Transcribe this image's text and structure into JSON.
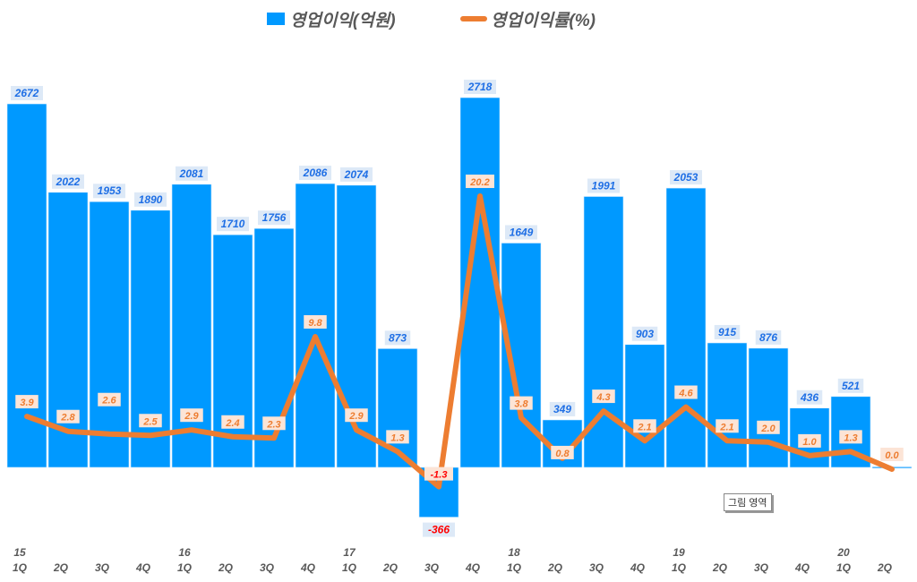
{
  "legend": {
    "bar_label": "영업이익(억원)",
    "line_label": "영업이익률(%)"
  },
  "tooltip": "그림 영역",
  "colors": {
    "bar": "#0099ff",
    "line": "#ed7d31",
    "bar_label": "#1f6fe5",
    "negative_label": "#ff0000",
    "axis_text": "#595959"
  },
  "chart_data": {
    "type": "bar+line",
    "title": "",
    "categories": [
      "15 1Q",
      "2Q",
      "3Q",
      "4Q",
      "16 1Q",
      "2Q",
      "3Q",
      "4Q",
      "17 1Q",
      "2Q",
      "3Q",
      "4Q",
      "18 1Q",
      "2Q",
      "3Q",
      "4Q",
      "19 1Q",
      "2Q",
      "3Q",
      "4Q",
      "20 1Q",
      "2Q"
    ],
    "x_tick_years": [
      "15",
      "",
      "",
      "",
      "16",
      "",
      "",
      "",
      "17",
      "",
      "",
      "",
      "18",
      "",
      "",
      "",
      "19",
      "",
      "",
      "",
      "20",
      ""
    ],
    "x_tick_quarters": [
      "1Q",
      "2Q",
      "3Q",
      "4Q",
      "1Q",
      "2Q",
      "3Q",
      "4Q",
      "1Q",
      "2Q",
      "3Q",
      "4Q",
      "1Q",
      "2Q",
      "3Q",
      "4Q",
      "1Q",
      "2Q",
      "3Q",
      "4Q",
      "1Q",
      "2Q"
    ],
    "series": [
      {
        "name": "영업이익(억원)",
        "type": "bar",
        "values": [
          2672,
          2022,
          1953,
          1890,
          2081,
          1710,
          1756,
          2086,
          2074,
          873,
          -366,
          2718,
          1649,
          349,
          1991,
          903,
          2053,
          915,
          876,
          436,
          521,
          4
        ],
        "labels": [
          "2672",
          "2022",
          "1953",
          "1890",
          "2081",
          "1710",
          "1756",
          "2086",
          "2074",
          "873",
          "-366",
          "2718",
          "1649",
          "349",
          "1991",
          "903",
          "2053",
          "915",
          "876",
          "436",
          "521",
          ""
        ]
      },
      {
        "name": "영업이익률(%)",
        "type": "line",
        "values": [
          3.9,
          2.8,
          2.6,
          2.5,
          2.9,
          2.4,
          2.3,
          9.8,
          2.9,
          1.3,
          -1.3,
          20.2,
          3.8,
          0.8,
          4.3,
          2.1,
          4.6,
          2.1,
          2.0,
          1.0,
          1.3,
          0.0
        ],
        "labels": [
          "3.9",
          "2.8",
          "2.6",
          "2.5",
          "2.9",
          "2.4",
          "2.3",
          "9.8",
          "2.9",
          "1.3",
          "-1.3",
          "20.2",
          "3.8",
          "0.8",
          "4.3",
          "2.1",
          "4.6",
          "2.1",
          "2.0",
          "1.0",
          "1.3",
          "0.0"
        ]
      }
    ],
    "xlabel": "",
    "ylabel": "",
    "grid": false,
    "legend_position": "top"
  }
}
